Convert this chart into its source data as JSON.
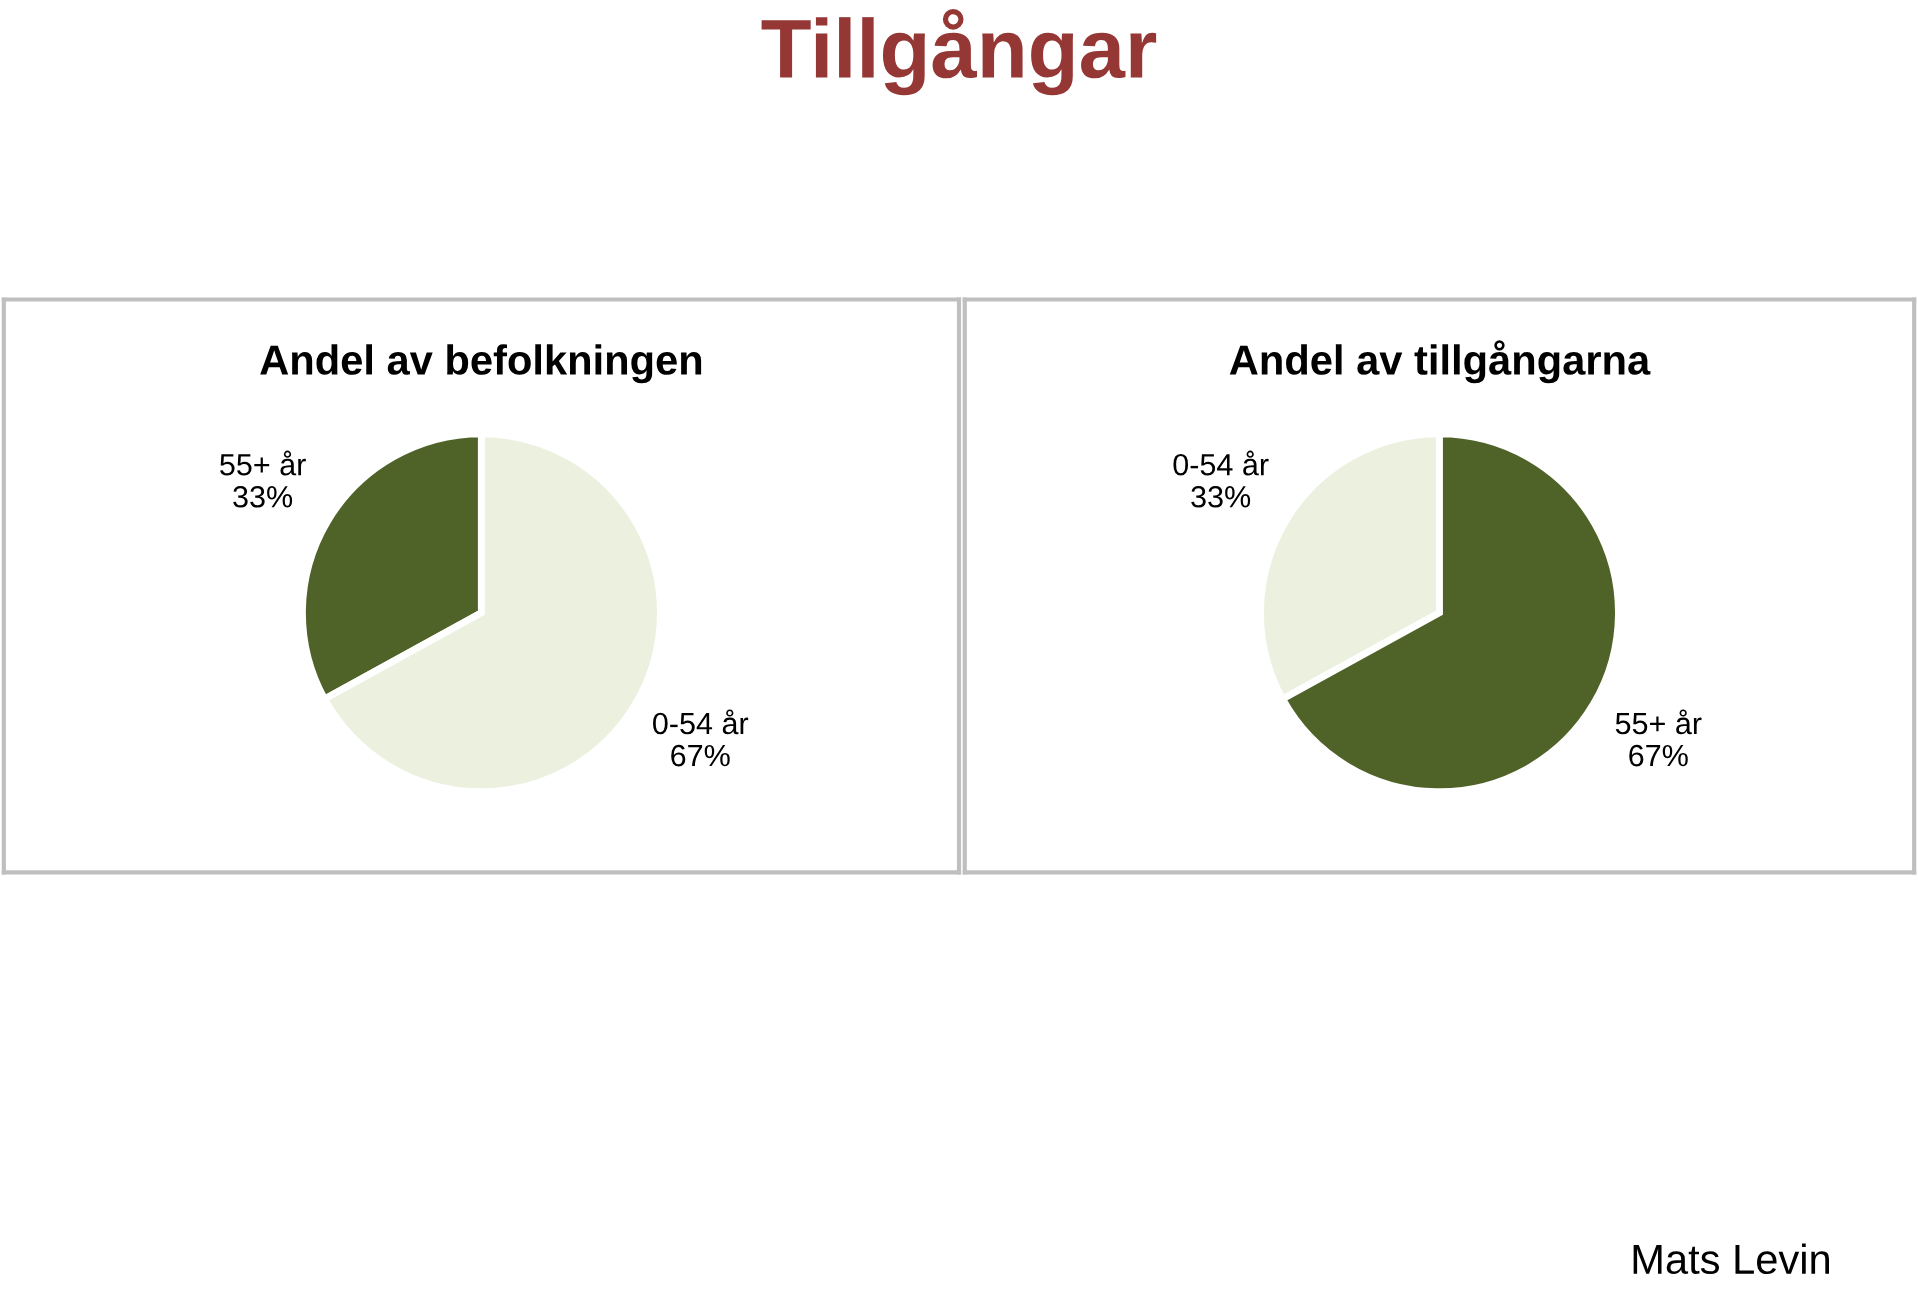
{
  "chart_data": [
    {
      "type": "pie",
      "title": "Andel av befolkningen",
      "categories": [
        "55+ år",
        "0-54 år"
      ],
      "values": [
        33,
        67
      ],
      "value_labels": [
        "33%",
        "67%"
      ],
      "colors": [
        "#4f6228",
        "#ebf1de"
      ]
    },
    {
      "type": "pie",
      "title": "Andel av tillgångarna",
      "categories": [
        "0-54 år",
        "55+ år"
      ],
      "values": [
        33,
        67
      ],
      "value_labels": [
        "33%",
        "67%"
      ],
      "colors": [
        "#ebf1de",
        "#4f6228"
      ]
    },
    {
      "type": "other",
      "title": "Tillgångar",
      "annotations": [
        "Mats Levin"
      ]
    }
  ]
}
